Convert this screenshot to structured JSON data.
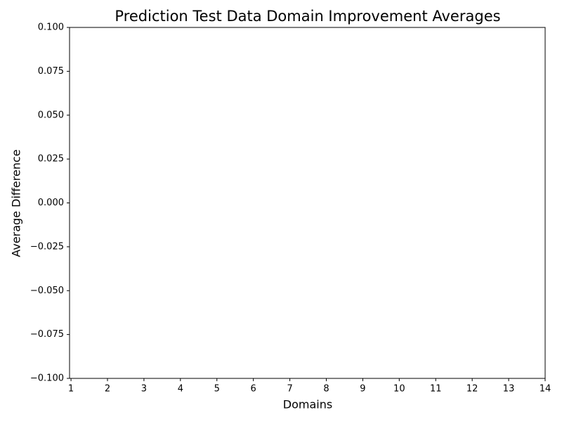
{
  "chart_data": {
    "type": "line",
    "title": "Prediction Test Data Domain Improvement Averages",
    "xlabel": "Domains",
    "ylabel": "Average Difference",
    "xlim": [
      0.96,
      14
    ],
    "xticks": [
      1,
      2,
      3,
      4,
      5,
      6,
      7,
      8,
      9,
      10,
      11,
      12,
      13,
      14
    ],
    "ylim": [
      -0.1,
      0.1
    ],
    "yticks": [
      {
        "value": -0.1,
        "label": "−0.100"
      },
      {
        "value": -0.075,
        "label": "−0.075"
      },
      {
        "value": -0.05,
        "label": "−0.050"
      },
      {
        "value": -0.025,
        "label": "−0.025"
      },
      {
        "value": 0,
        "label": "0.000"
      },
      {
        "value": 0.025,
        "label": "0.025"
      },
      {
        "value": 0.05,
        "label": "0.050"
      },
      {
        "value": 0.075,
        "label": "0.075"
      },
      {
        "value": 0.1,
        "label": "0.100"
      }
    ],
    "series": []
  }
}
